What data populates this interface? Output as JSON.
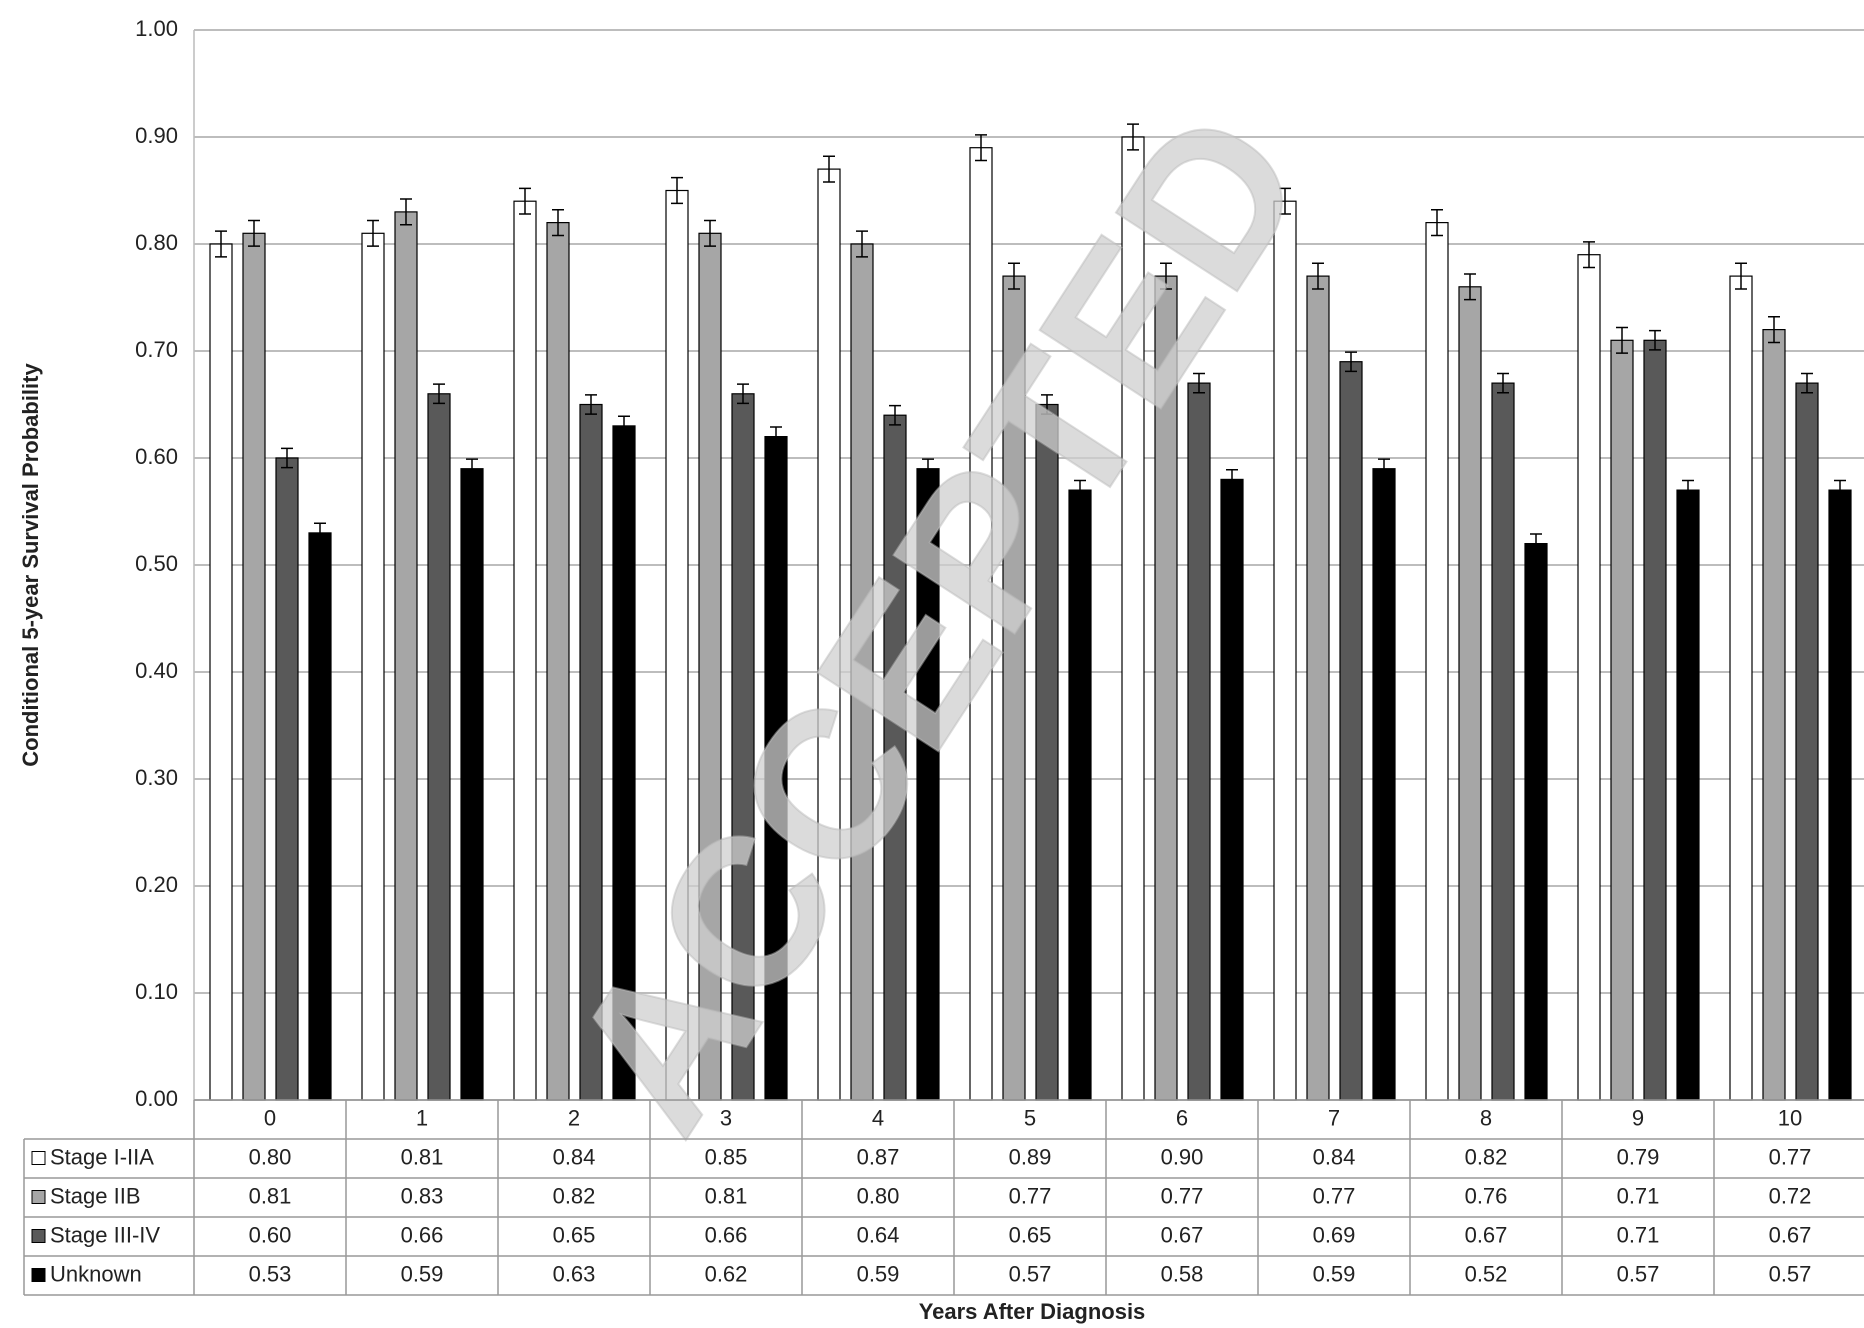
{
  "chart_data": {
    "type": "bar",
    "y_label": "Conditional 5-year Survival Probability",
    "x_label": "Years After Diagnosis",
    "watermark": "ACCEPTED",
    "categories": [
      "0",
      "1",
      "2",
      "3",
      "4",
      "5",
      "6",
      "7",
      "8",
      "9",
      "10"
    ],
    "series": [
      {
        "name": "Stage I-IIA",
        "color": "#ffffff",
        "values": [
          0.8,
          0.81,
          0.84,
          0.85,
          0.87,
          0.89,
          0.9,
          0.84,
          0.82,
          0.79,
          0.77
        ],
        "value_labels": [
          "0.80",
          "0.81",
          "0.84",
          "0.85",
          "0.87",
          "0.89",
          "0.90",
          "0.84",
          "0.82",
          "0.79",
          "0.77"
        ],
        "errors": [
          0.012,
          0.012,
          0.012,
          0.012,
          0.012,
          0.012,
          0.012,
          0.012,
          0.012,
          0.012,
          0.012
        ]
      },
      {
        "name": "Stage IIB",
        "color": "#a6a6a6",
        "values": [
          0.81,
          0.83,
          0.82,
          0.81,
          0.8,
          0.77,
          0.77,
          0.77,
          0.76,
          0.71,
          0.72
        ],
        "value_labels": [
          "0.81",
          "0.83",
          "0.82",
          "0.81",
          "0.80",
          "0.77",
          "0.77",
          "0.77",
          "0.76",
          "0.71",
          "0.72"
        ],
        "errors": [
          0.012,
          0.012,
          0.012,
          0.012,
          0.012,
          0.012,
          0.012,
          0.012,
          0.012,
          0.012,
          0.012
        ]
      },
      {
        "name": "Stage III-IV",
        "color": "#595959",
        "values": [
          0.6,
          0.66,
          0.65,
          0.66,
          0.64,
          0.65,
          0.67,
          0.69,
          0.67,
          0.71,
          0.67
        ],
        "value_labels": [
          "0.60",
          "0.66",
          "0.65",
          "0.66",
          "0.64",
          "0.65",
          "0.67",
          "0.69",
          "0.67",
          "0.71",
          "0.67"
        ],
        "errors": [
          0.009,
          0.009,
          0.009,
          0.009,
          0.009,
          0.009,
          0.009,
          0.009,
          0.009,
          0.009,
          0.009
        ]
      },
      {
        "name": "Unknown",
        "color": "#000000",
        "values": [
          0.53,
          0.59,
          0.63,
          0.62,
          0.59,
          0.57,
          0.58,
          0.59,
          0.52,
          0.57,
          0.57
        ],
        "value_labels": [
          "0.53",
          "0.59",
          "0.63",
          "0.62",
          "0.59",
          "0.57",
          "0.58",
          "0.59",
          "0.52",
          "0.57",
          "0.57"
        ],
        "errors": [
          0.009,
          0.009,
          0.009,
          0.009,
          0.009,
          0.009,
          0.009,
          0.009,
          0.009,
          0.009,
          0.009
        ]
      }
    ],
    "ylim": [
      0,
      1
    ],
    "yticks": [
      {
        "value": 0,
        "label": "0.00"
      },
      {
        "value": 0.1,
        "label": "0.10"
      },
      {
        "value": 0.2,
        "label": "0.20"
      },
      {
        "value": 0.3,
        "label": "0.30"
      },
      {
        "value": 0.4,
        "label": "0.40"
      },
      {
        "value": 0.5,
        "label": "0.50"
      },
      {
        "value": 0.6,
        "label": "0.60"
      },
      {
        "value": 0.7,
        "label": "0.70"
      },
      {
        "value": 0.8,
        "label": "0.80"
      },
      {
        "value": 0.9,
        "label": "0.90"
      },
      {
        "value": 1,
        "label": "1.00"
      }
    ],
    "grid": true
  }
}
